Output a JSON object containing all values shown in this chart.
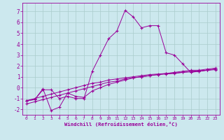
{
  "title": "",
  "xlabel": "Windchill (Refroidissement éolien,°C)",
  "bg_color": "#cce8ee",
  "grid_color": "#aacccc",
  "line_color": "#990099",
  "xlim": [
    -0.5,
    23.5
  ],
  "ylim": [
    -2.5,
    7.8
  ],
  "yticks": [
    -2,
    -1,
    0,
    1,
    2,
    3,
    4,
    5,
    6,
    7
  ],
  "xticks": [
    0,
    1,
    2,
    3,
    4,
    5,
    6,
    7,
    8,
    9,
    10,
    11,
    12,
    13,
    14,
    15,
    16,
    17,
    18,
    19,
    20,
    21,
    22,
    23
  ],
  "series": [
    {
      "x": [
        0,
        1,
        2,
        3,
        4,
        5,
        6,
        7,
        8,
        9,
        10,
        11,
        12,
        13,
        14,
        15,
        16,
        17,
        18,
        19,
        20,
        21,
        22,
        23
      ],
      "y": [
        -1.2,
        -1.1,
        -0.2,
        -0.2,
        -1.0,
        -0.8,
        -1.0,
        -1.0,
        1.5,
        3.0,
        4.5,
        5.2,
        7.1,
        6.5,
        5.5,
        5.7,
        5.7,
        3.2,
        3.0,
        2.2,
        1.4,
        1.5,
        1.6,
        1.7
      ]
    },
    {
      "x": [
        0,
        1,
        2,
        3,
        4,
        5,
        6,
        7,
        8,
        9,
        10,
        11,
        12,
        13,
        14,
        15,
        16,
        17,
        18,
        19,
        20,
        21,
        22,
        23
      ],
      "y": [
        -1.2,
        -1.1,
        -0.1,
        -2.1,
        -1.8,
        -0.5,
        -0.8,
        -0.9,
        -0.3,
        0.0,
        0.3,
        0.5,
        0.7,
        0.9,
        1.0,
        1.1,
        1.2,
        1.3,
        1.4,
        1.5,
        1.6,
        1.6,
        1.7,
        1.8
      ]
    },
    {
      "x": [
        0,
        1,
        2,
        3,
        4,
        5,
        6,
        7,
        8,
        9,
        10,
        11,
        12,
        13,
        14,
        15,
        16,
        17,
        18,
        19,
        20,
        21,
        22,
        23
      ],
      "y": [
        -1.5,
        -1.3,
        -1.1,
        -0.9,
        -0.7,
        -0.5,
        -0.3,
        -0.1,
        0.1,
        0.3,
        0.5,
        0.6,
        0.8,
        0.9,
        1.0,
        1.1,
        1.2,
        1.25,
        1.3,
        1.4,
        1.45,
        1.5,
        1.6,
        1.65
      ]
    },
    {
      "x": [
        0,
        1,
        2,
        3,
        4,
        5,
        6,
        7,
        8,
        9,
        10,
        11,
        12,
        13,
        14,
        15,
        16,
        17,
        18,
        19,
        20,
        21,
        22,
        23
      ],
      "y": [
        -1.2,
        -1.0,
        -0.8,
        -0.6,
        -0.4,
        -0.2,
        0.0,
        0.2,
        0.4,
        0.5,
        0.7,
        0.8,
        0.9,
        1.0,
        1.1,
        1.2,
        1.25,
        1.3,
        1.35,
        1.4,
        1.5,
        1.55,
        1.6,
        1.7
      ]
    }
  ]
}
